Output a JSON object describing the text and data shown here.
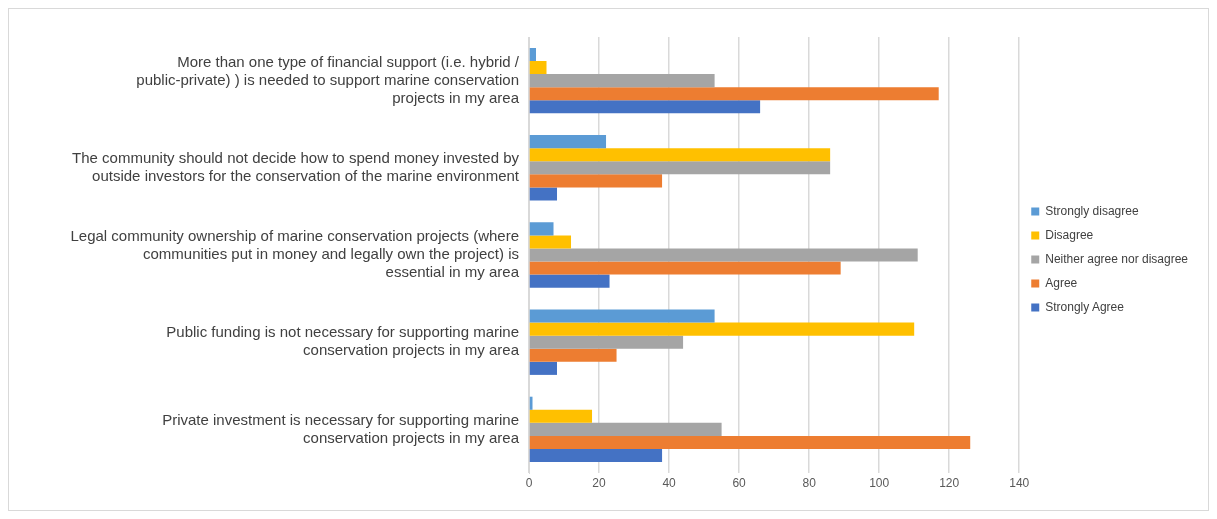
{
  "chart_data": {
    "type": "bar",
    "orientation": "horizontal",
    "categories": [
      "More than one type of financial support (i.e. hybrid / public-private) ) is needed to support marine conservation projects in my area",
      "The community should not decide how to spend money invested by outside investors for the conservation of the marine environment",
      "Legal community ownership of marine conservation projects (where communities put in money and legally own the project) is essential in my area",
      "Public funding is not necessary for supporting marine conservation projects in my area",
      "Private investment is necessary for supporting marine conservation projects in my area"
    ],
    "series": [
      {
        "name": "Strongly disagree",
        "color": "#5b9bd5",
        "values": [
          2,
          22,
          7,
          53,
          1
        ]
      },
      {
        "name": "Disagree",
        "color": "#ffc000",
        "values": [
          5,
          86,
          12,
          110,
          18
        ]
      },
      {
        "name": "Neither agree nor disagree",
        "color": "#a5a5a5",
        "values": [
          53,
          86,
          111,
          44,
          55
        ]
      },
      {
        "name": "Agree",
        "color": "#ed7d31",
        "values": [
          117,
          38,
          89,
          25,
          126
        ]
      },
      {
        "name": "Strongly Agree",
        "color": "#4472c4",
        "values": [
          66,
          8,
          23,
          8,
          38
        ]
      }
    ],
    "xlim": [
      0,
      140
    ],
    "xticks": [
      0,
      20,
      40,
      60,
      80,
      100,
      120,
      140
    ],
    "grid": "x",
    "legend": "right"
  }
}
